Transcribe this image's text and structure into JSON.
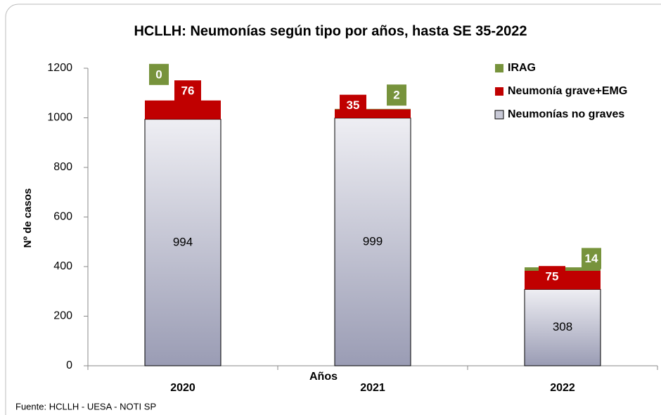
{
  "chart_data": {
    "type": "bar",
    "stacked": true,
    "title": "HCLLH: Neumonías según tipo por años, hasta SE 35-2022",
    "x_label": "Años",
    "y_label": "Nº de casos",
    "source": "Fuente: HCLLH - UESA - NOTI SP",
    "categories": [
      "2020",
      "2021",
      "2022"
    ],
    "series": [
      {
        "name": "Neumonías no graves",
        "color": "#b4b6c6",
        "values": [
          994,
          999,
          308
        ]
      },
      {
        "name": "Neumonía grave+EMG",
        "color": "#c00000",
        "values": [
          76,
          35,
          75
        ]
      },
      {
        "name": "IRAG",
        "color": "#77933c",
        "values": [
          0,
          2,
          14
        ]
      }
    ],
    "ylim": [
      0,
      1200
    ],
    "yticks": [
      0,
      200,
      400,
      600,
      800,
      1000,
      1200
    ],
    "grid": false,
    "legend": "top-right"
  }
}
